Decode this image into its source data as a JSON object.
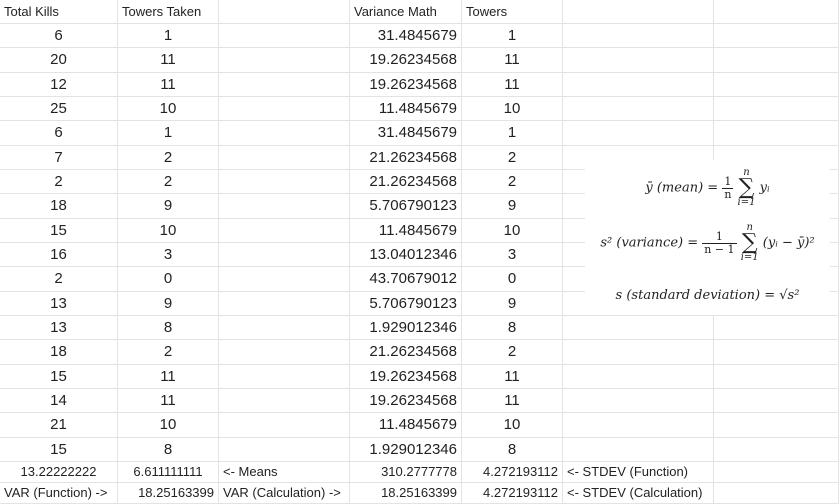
{
  "headers": [
    "Total Kills",
    "Towers Taken",
    "",
    "Variance Math",
    "Towers",
    "",
    ""
  ],
  "rows": [
    [
      "6",
      "1",
      "",
      "31.4845679",
      "1",
      "",
      ""
    ],
    [
      "20",
      "11",
      "",
      "19.26234568",
      "11",
      "",
      ""
    ],
    [
      "12",
      "11",
      "",
      "19.26234568",
      "11",
      "",
      ""
    ],
    [
      "25",
      "10",
      "",
      "11.4845679",
      "10",
      "",
      ""
    ],
    [
      "6",
      "1",
      "",
      "31.4845679",
      "1",
      "",
      ""
    ],
    [
      "7",
      "2",
      "",
      "21.26234568",
      "2",
      "",
      ""
    ],
    [
      "2",
      "2",
      "",
      "21.26234568",
      "2",
      "",
      ""
    ],
    [
      "18",
      "9",
      "",
      "5.706790123",
      "9",
      "",
      ""
    ],
    [
      "15",
      "10",
      "",
      "11.4845679",
      "10",
      "",
      ""
    ],
    [
      "16",
      "3",
      "",
      "13.04012346",
      "3",
      "",
      ""
    ],
    [
      "2",
      "0",
      "",
      "43.70679012",
      "0",
      "",
      ""
    ],
    [
      "13",
      "9",
      "",
      "5.706790123",
      "9",
      "",
      ""
    ],
    [
      "13",
      "8",
      "",
      "1.929012346",
      "8",
      "",
      ""
    ],
    [
      "18",
      "2",
      "",
      "21.26234568",
      "2",
      "",
      ""
    ],
    [
      "15",
      "11",
      "",
      "19.26234568",
      "11",
      "",
      ""
    ],
    [
      "14",
      "11",
      "",
      "19.26234568",
      "11",
      "",
      ""
    ],
    [
      "21",
      "10",
      "",
      "11.4845679",
      "10",
      "",
      ""
    ],
    [
      "15",
      "8",
      "",
      "1.929012346",
      "8",
      "",
      ""
    ]
  ],
  "summary": [
    [
      "13.22222222",
      "6.611111111",
      "<- Means",
      "310.2777778",
      "4.272193112",
      "<- STDEV (Function)",
      ""
    ],
    [
      "VAR (Function) ->",
      "18.25163399",
      "VAR (Calculation) ->",
      "18.25163399",
      "4.272193112",
      "<- STDEV (Calculation)",
      ""
    ]
  ],
  "formula": {
    "mean_lhs": "ȳ (mean) =",
    "mean_num": "1",
    "mean_den": "n",
    "sum_top": "n",
    "sum_bottom": "i=1",
    "mean_term": "yᵢ",
    "var_lhs": "s² (variance) =",
    "var_num": "1",
    "var_den": "n − 1",
    "var_term": "(yᵢ − ȳ)²",
    "sd_line": "s (standard deviation) = √s²"
  }
}
